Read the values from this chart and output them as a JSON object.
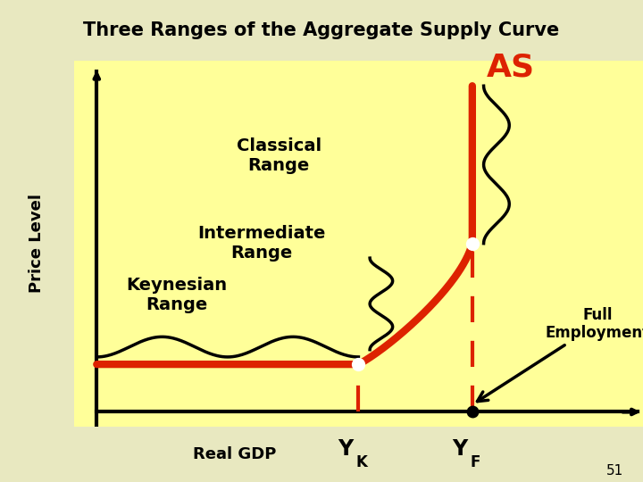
{
  "title": "Three Ranges of the Aggregate Supply Curve",
  "title_bg": "#F5A300",
  "title_color": "#000000",
  "outer_bg": "#E8E8C0",
  "chart_bg": "#FFFF99",
  "ylabel_bg": "#F5A300",
  "xlabel_bg": "#F5A300",
  "ylabel": "Price Level",
  "xlabel": "Real GDP",
  "AS_label": "AS",
  "AS_color": "#DD2200",
  "curve_color": "#DD2200",
  "label_classical": "Classical\nRange",
  "label_intermediate": "Intermediate\nRange",
  "label_keynesian": "Keynesian\nRange",
  "label_full_emp": "Full\nEmployment",
  "page_num": "51",
  "xK": 0.5,
  "xF": 0.7,
  "yFlat": 0.17,
  "yMid": 0.5,
  "yTop": 0.93
}
